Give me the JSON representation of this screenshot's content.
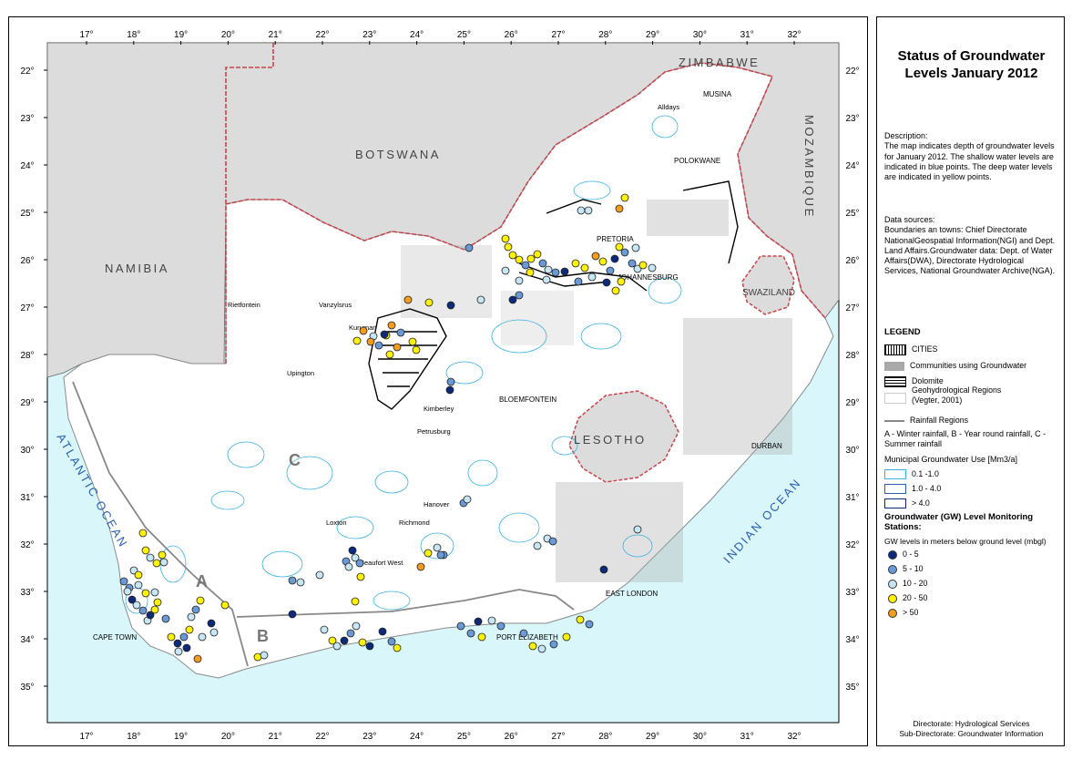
{
  "map": {
    "lon_ticks": [
      "17°",
      "18°",
      "19°",
      "20°",
      "21°",
      "22°",
      "23°",
      "24°",
      "25°",
      "26°",
      "27°",
      "28°",
      "29°",
      "30°",
      "31°",
      "32°"
    ],
    "lat_ticks": [
      "22°",
      "23°",
      "24°",
      "25°",
      "26°",
      "27°",
      "28°",
      "29°",
      "30°",
      "31°",
      "32°",
      "33°",
      "34°",
      "35°"
    ],
    "countries": {
      "zimbabwe": "ZIMBABWE",
      "botswana": "BOTSWANA",
      "namibia": "NAMIBIA",
      "mozambique": "MOZAMBIQUE",
      "swaziland": "SWAZILAND",
      "lesotho": "LESOTHO"
    },
    "oceans": {
      "atlantic": "ATLANTIC OCEAN",
      "indian": "INDIAN OCEAN"
    },
    "regions": {
      "a": "A",
      "b": "B",
      "c": "C"
    },
    "towns": [
      {
        "id": "musina",
        "label": "MUSINA"
      },
      {
        "id": "alldays",
        "label": "Alldays"
      },
      {
        "id": "polokwane",
        "label": "POLOKWANE"
      },
      {
        "id": "pretoria",
        "label": "PRETORIA"
      },
      {
        "id": "johannesburg",
        "label": "JOHANNESBURG"
      },
      {
        "id": "rietfontein",
        "label": "Rietfontein"
      },
      {
        "id": "vanzylsrus",
        "label": "Vanzylsrus"
      },
      {
        "id": "kuruman",
        "label": "Kuruman"
      },
      {
        "id": "upington",
        "label": "Upington"
      },
      {
        "id": "kimberley",
        "label": "Kimberley"
      },
      {
        "id": "petrusburg",
        "label": "Petrusburg"
      },
      {
        "id": "bloemfontein",
        "label": "BLOEMFONTEIN"
      },
      {
        "id": "durban",
        "label": "DURBAN"
      },
      {
        "id": "hanover",
        "label": "Hanover"
      },
      {
        "id": "loxton",
        "label": "Loxton"
      },
      {
        "id": "richmond",
        "label": "Richmond"
      },
      {
        "id": "beaufort-west",
        "label": "Beaufort West"
      },
      {
        "id": "east-london",
        "label": "EAST LONDON"
      },
      {
        "id": "cape-town",
        "label": "CAPE TOWN"
      },
      {
        "id": "port-elizabeth",
        "label": "PORT ELIZABETH"
      }
    ],
    "colors": {
      "ocean": "#d9f7fb",
      "neighbour": "#dcdcdc",
      "land": "#ffffff",
      "border": "#c8444c",
      "aquifer": "#3ab0e0",
      "level_0_5": "#0d2a7a",
      "level_5_10": "#6a9ad6",
      "level_10_20": "#c6e6f4",
      "level_20_50": "#fff200",
      "level_gt_50": "#f39c1e"
    }
  },
  "legend": {
    "title": "Status of Groundwater Levels January 2012",
    "description": "Description:\nThe map indicates depth of groundwater levels for January 2012. The shallow water levels are indicated in blue points. The deep water levels are indicated in yellow points.",
    "sources": "Data sources:\nBoundaries an towns: Chief Directorate NationalGeospatial Information(NGI) and Dept. Land Affairs.Groundwater data: Dept. of Water Affairs(DWA), Directorate Hydrological Services, National Groundwater Archive(NGA).",
    "heading": "LEGEND",
    "cities": "CITIES",
    "communities": "Communities using Groundwater",
    "dolomite": "Dolomite",
    "geohydro": "Geohydrological Regions (Vegter, 2001)",
    "rainfall_regions": "Rainfall Regions",
    "rainfall_keys": "A - Winter rainfall, B - Year round rainfall, C - Summer rainfall",
    "municipal_title": "Municipal Groundwater Use [Mm3/a]",
    "municipal_items": [
      "0.1 -1.0",
      "1.0 - 4.0",
      "> 4.0"
    ],
    "stations_title": "Groundwater (GW) Level Monitoring Stations:",
    "stations_sub": "GW levels in meters below ground level (mbgl)",
    "levels": [
      "0 - 5",
      "5 - 10",
      "10 - 20",
      "20 - 50",
      "> 50"
    ],
    "credit_1": "Directorate: Hydrological Services",
    "credit_2": "Sub-Directorate: Groundwater Information"
  }
}
